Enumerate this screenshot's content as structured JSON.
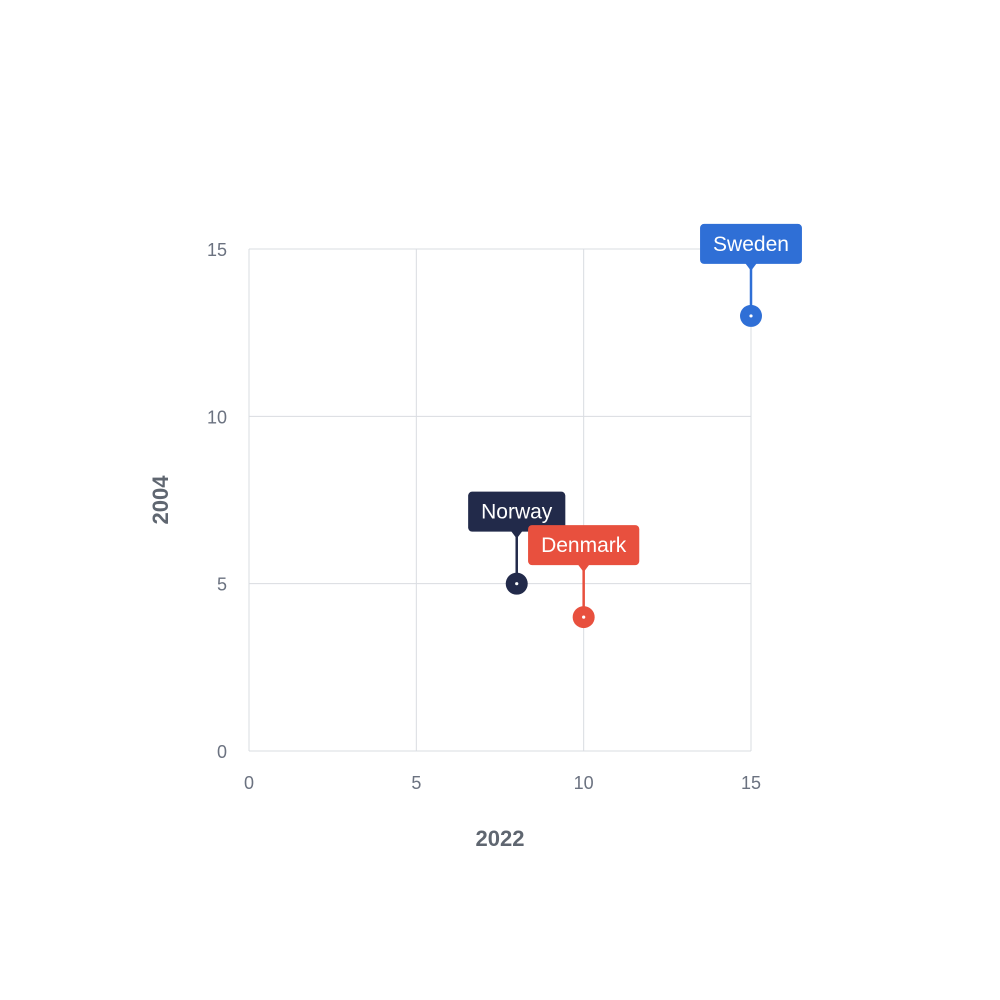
{
  "chart_data": {
    "type": "scatter",
    "title": "",
    "xlabel": "2022",
    "ylabel": "2004",
    "xlim": [
      0,
      15
    ],
    "ylim": [
      0,
      15
    ],
    "x_ticks": [
      0,
      5,
      10,
      15
    ],
    "y_ticks": [
      0,
      5,
      10,
      15
    ],
    "grid": true,
    "points": [
      {
        "label": "Sweden",
        "x": 15,
        "y": 13,
        "color": "#2f6fd6"
      },
      {
        "label": "Norway",
        "x": 8,
        "y": 5,
        "color": "#222a4a"
      },
      {
        "label": "Denmark",
        "x": 10,
        "y": 4,
        "color": "#e8503e"
      }
    ]
  }
}
